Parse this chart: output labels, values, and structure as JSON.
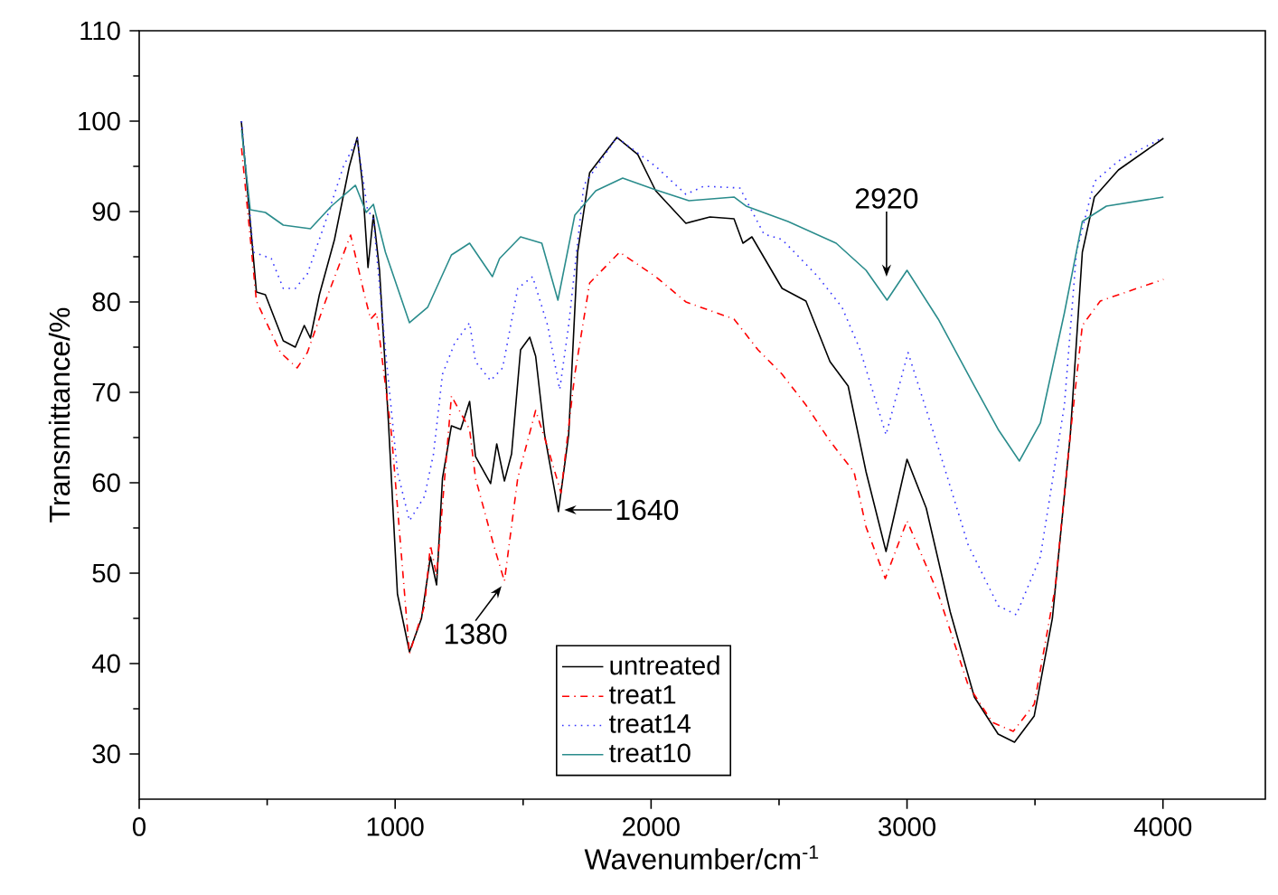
{
  "chart_data": {
    "type": "line",
    "xlabel": "Wavenumber/cm$^{-1}$",
    "ylabel": "Transmittance/%",
    "xlim": [
      0,
      4400
    ],
    "ylim": [
      25,
      110
    ],
    "xticks": [
      0,
      1000,
      2000,
      3000,
      4000
    ],
    "yticks": [
      30,
      40,
      50,
      60,
      70,
      80,
      90,
      100,
      110
    ],
    "grid": false,
    "legend": "bottom",
    "marker": "none",
    "annotations": [
      {
        "text": "1380",
        "x": 1427,
        "y": 49
      },
      {
        "text": "1640",
        "x": 1640,
        "y": 57
      },
      {
        "text": "2920",
        "x": 2920,
        "y": 82
      }
    ],
    "series": [
      {
        "name": "untreated",
        "color": "#000000",
        "line_style": "solid",
        "x": [
          399,
          458,
          493,
          563,
          610,
          645,
          669,
          704,
          763,
          821,
          852,
          873,
          894,
          915,
          939,
          974,
          1009,
          1056,
          1103,
          1138,
          1162,
          1185,
          1220,
          1256,
          1291,
          1314,
          1373,
          1397,
          1427,
          1455,
          1490,
          1526,
          1549,
          1584,
          1638,
          1678,
          1713,
          1760,
          1866,
          1948,
          2018,
          2136,
          2230,
          2324,
          2359,
          2394,
          2512,
          2605,
          2699,
          2770,
          2840,
          2918,
          3000,
          3075,
          3169,
          3263,
          3356,
          3420,
          3497,
          3568,
          3638,
          3685,
          3732,
          3826,
          4002
        ],
        "values": [
          100,
          81.1,
          80.8,
          75.7,
          75.0,
          77.4,
          76,
          80.8,
          86.9,
          95,
          98.2,
          92.9,
          83.8,
          89.6,
          83.5,
          66.6,
          47.7,
          41.3,
          45.0,
          51.8,
          48.7,
          60.5,
          66.3,
          65.9,
          69.0,
          62.9,
          59.9,
          64.3,
          60.2,
          63.2,
          74.7,
          76.1,
          74.0,
          65.3,
          56.8,
          65.3,
          85.5,
          94.3,
          98.2,
          96.3,
          92.3,
          88.7,
          89.4,
          89.2,
          86.5,
          87.2,
          81.5,
          80.1,
          73.4,
          70.7,
          61.2,
          52.4,
          62.6,
          57.2,
          45.7,
          36.3,
          32.2,
          31.3,
          34.2,
          45.0,
          65.3,
          85.5,
          91.6,
          94.6,
          98.1
        ]
      },
      {
        "name": "treat1",
        "color": "#ff0000",
        "line_style": "dashdotted",
        "x": [
          400,
          458,
          552,
          617,
          657,
          728,
          826,
          880,
          904,
          927,
          986,
          1056,
          1115,
          1138,
          1162,
          1220,
          1291,
          1314,
          1385,
          1427,
          1479,
          1549,
          1596,
          1648,
          1702,
          1760,
          1877,
          2018,
          2136,
          2324,
          2418,
          2512,
          2605,
          2699,
          2793,
          2840,
          2915,
          3000,
          3122,
          3239,
          3333,
          3415,
          3497,
          3579,
          3638,
          3685,
          3755,
          4002
        ],
        "values": [
          97,
          80.1,
          74.4,
          72.7,
          74.4,
          80.1,
          87.4,
          80.8,
          78.1,
          78.8,
          65.3,
          41.1,
          46.4,
          53.1,
          49.7,
          69.6,
          65.9,
          60.5,
          53.1,
          49.1,
          60.5,
          68.0,
          63.9,
          58.9,
          72.0,
          82.1,
          85.5,
          82.8,
          80.0,
          78.1,
          74.7,
          72.0,
          68.6,
          64.6,
          61.2,
          55.1,
          49.4,
          55.8,
          47.7,
          37.6,
          33.5,
          32.5,
          35.5,
          48.4,
          65.3,
          77.4,
          80.1,
          82.5
        ]
      },
      {
        "name": "treat14",
        "color": "#3333ff",
        "line_style": "dotted",
        "x": [
          400,
          446,
          516,
          563,
          610,
          657,
          728,
          798,
          852,
          892,
          915,
          962,
          1009,
          1056,
          1115,
          1150,
          1185,
          1232,
          1291,
          1314,
          1373,
          1420,
          1479,
          1537,
          1596,
          1643,
          1678,
          1737,
          1866,
          2018,
          2136,
          2206,
          2347,
          2441,
          2512,
          2652,
          2746,
          2817,
          2918,
          3004,
          3122,
          3239,
          3356,
          3427,
          3521,
          3615,
          3662,
          3732,
          3826,
          4002
        ],
        "values": [
          100,
          85.5,
          84.8,
          81.5,
          81.5,
          83.1,
          88.9,
          95.0,
          98.0,
          90.2,
          89.2,
          74.7,
          61.2,
          55.8,
          58.5,
          63.2,
          72.0,
          75.4,
          77.7,
          73.4,
          71.3,
          72.7,
          81.5,
          82.8,
          77.4,
          70.3,
          77.4,
          92.9,
          98.2,
          95.0,
          91.9,
          92.8,
          92.6,
          87.5,
          86.9,
          82.8,
          79.4,
          74.7,
          65.3,
          74.4,
          63.9,
          53.1,
          46.4,
          45.4,
          51.8,
          68.6,
          85.5,
          93.3,
          95.6,
          98.2
        ]
      },
      {
        "name": "treat10",
        "color": "#2a8c8c",
        "line_style": "solid",
        "x": [
          400,
          434,
          493,
          563,
          669,
          751,
          845,
          887,
          915,
          962,
          1056,
          1127,
          1220,
          1291,
          1380,
          1408,
          1490,
          1573,
          1636,
          1702,
          1784,
          1889,
          2018,
          2148,
          2324,
          2371,
          2535,
          2723,
          2840,
          2922,
          3000,
          3122,
          3263,
          3356,
          3439,
          3521,
          3615,
          3685,
          3779,
          4002
        ],
        "values": [
          99,
          90.2,
          89.9,
          88.5,
          88.1,
          90.6,
          92.9,
          89.9,
          90.8,
          85.5,
          77.7,
          79.4,
          85.2,
          86.5,
          82.8,
          84.8,
          87.2,
          86.5,
          80.2,
          89.6,
          92.3,
          93.7,
          92.4,
          91.2,
          91.6,
          90.6,
          88.9,
          86.5,
          83.5,
          80.2,
          83.5,
          78.1,
          70.7,
          65.9,
          62.4,
          66.6,
          78.8,
          88.9,
          90.6,
          91.6
        ]
      }
    ]
  }
}
